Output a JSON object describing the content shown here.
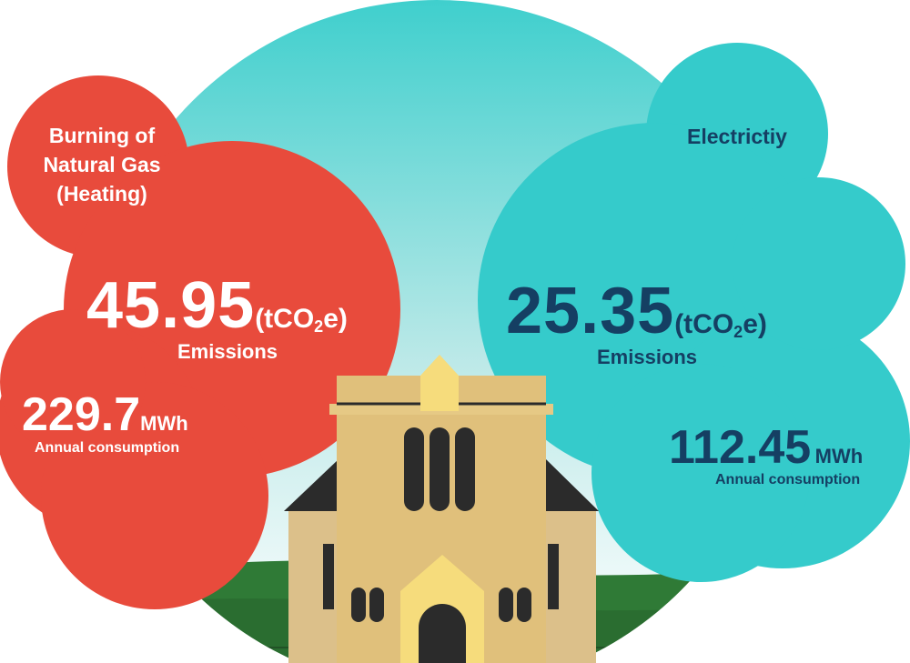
{
  "colors": {
    "gas": "#e84b3c",
    "electricity": "#35cbcb",
    "sky_top": "#43d0cf",
    "grass": "#2f7a36",
    "building": "#e0c07b",
    "roof": "#2b2b2b",
    "dark_text": "#153f63"
  },
  "gas": {
    "heading_line1": "Burning of",
    "heading_line2": "Natural Gas",
    "heading_line3": "(Heating)",
    "emissions_value": "45.95",
    "emissions_unit_prefix": "(tCO",
    "emissions_unit_sub": "2",
    "emissions_unit_suffix": "e)",
    "emissions_label": "Emissions",
    "consumption_value": "229.7",
    "consumption_unit": "MWh",
    "consumption_label": "Annual consumption"
  },
  "electricity": {
    "heading": "Electrictiy",
    "emissions_value": "25.35",
    "emissions_unit_prefix": "(tCO",
    "emissions_unit_sub": "2",
    "emissions_unit_suffix": "e)",
    "emissions_label": "Emissions",
    "consumption_value": "112.45",
    "consumption_unit": "MWh",
    "consumption_label": "Annual consumption"
  },
  "icons": {
    "building": "church-building-icon"
  }
}
